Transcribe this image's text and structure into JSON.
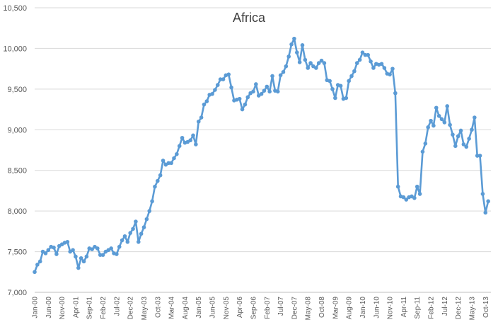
{
  "chart_data": {
    "type": "line",
    "title": "Africa",
    "xlabel": "",
    "ylabel": "",
    "ylim": [
      7000,
      10500
    ],
    "yticks": [
      "7,000",
      "7,500",
      "8,000",
      "8,500",
      "9,000",
      "9,500",
      "10,000",
      "10,500"
    ],
    "ytick_values": [
      7000,
      7500,
      8000,
      8500,
      9000,
      9500,
      10000,
      10500
    ],
    "x_start": "Jan-00",
    "x_end": "Dec-13",
    "xtick_labels": [
      "Jan-00",
      "Jun-00",
      "Nov-00",
      "Apr-01",
      "Sep-01",
      "Feb-02",
      "Jul-02",
      "Dec-02",
      "May-03",
      "Oct-03",
      "Mar-04",
      "Aug-04",
      "Jan-05",
      "Jun-05",
      "Nov-05",
      "Apr-06",
      "Sep-06",
      "Feb-07",
      "Jul-07",
      "Dec-07",
      "May-08",
      "Oct-08",
      "Mar-09",
      "Aug-09",
      "Jan-10",
      "Jun-10",
      "Nov-10",
      "Apr-11",
      "Sep-11",
      "Feb-12",
      "Jul-12",
      "Dec-12",
      "May-13",
      "Oct-13"
    ],
    "grid": true,
    "legend": "none",
    "series": [
      {
        "color": "#5b9bd5",
        "values": [
          7250,
          7340,
          7380,
          7500,
          7480,
          7520,
          7560,
          7550,
          7470,
          7570,
          7590,
          7610,
          7620,
          7500,
          7520,
          7440,
          7300,
          7420,
          7380,
          7440,
          7540,
          7530,
          7560,
          7540,
          7460,
          7460,
          7500,
          7520,
          7540,
          7480,
          7470,
          7560,
          7640,
          7690,
          7620,
          7730,
          7780,
          7870,
          7620,
          7720,
          7800,
          7900,
          8000,
          8120,
          8300,
          8370,
          8440,
          8620,
          8570,
          8590,
          8590,
          8650,
          8700,
          8800,
          8900,
          8840,
          8850,
          8870,
          8930,
          8820,
          9100,
          9150,
          9310,
          9350,
          9430,
          9440,
          9490,
          9550,
          9620,
          9620,
          9670,
          9680,
          9520,
          9360,
          9370,
          9380,
          9250,
          9310,
          9400,
          9450,
          9470,
          9560,
          9420,
          9440,
          9480,
          9530,
          9470,
          9660,
          9480,
          9470,
          9670,
          9710,
          9780,
          9900,
          10050,
          10120,
          9950,
          9830,
          10040,
          9860,
          9760,
          9820,
          9780,
          9760,
          9820,
          9850,
          9820,
          9610,
          9600,
          9500,
          9390,
          9550,
          9540,
          9380,
          9390,
          9600,
          9660,
          9720,
          9820,
          9860,
          9950,
          9920,
          9920,
          9840,
          9760,
          9810,
          9800,
          9810,
          9760,
          9690,
          9680,
          9750,
          9450,
          8300,
          8180,
          8170,
          8140,
          8170,
          8180,
          8160,
          8300,
          8210,
          8730,
          8830,
          9030,
          9110,
          9050,
          9270,
          9170,
          9130,
          9090,
          9290,
          9060,
          8940,
          8800,
          8920,
          8990,
          8820,
          8790,
          8890,
          9000,
          9150,
          8680,
          8680,
          8210,
          7980,
          8120
        ]
      }
    ]
  }
}
